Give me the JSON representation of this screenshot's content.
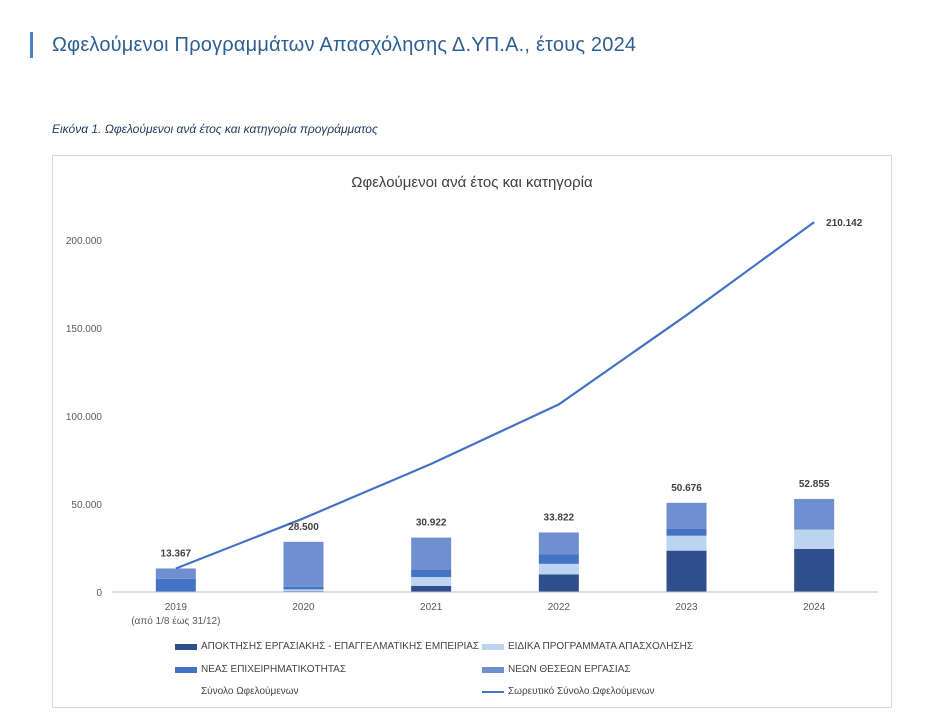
{
  "page": {
    "title": "Ωφελούμενοι Προγραμμάτων Απασχόλησης Δ.ΥΠ.Α., έτους 2024",
    "caption": "Εικόνα 1. Ωφελούμενοι ανά έτος και κατηγορία προγράμματος"
  },
  "colors": {
    "accent": "#4a84c4",
    "s1": "#2f4e8c",
    "s2": "#bcd4ef",
    "s3": "#4472c4",
    "s4": "#6f8fd0",
    "line": "#4472c4"
  },
  "chart_data": {
    "type": "bar",
    "stacked": true,
    "title": "Ωφελούμενοι ανά έτος και κατηγορία",
    "categories": [
      "2019",
      "2020",
      "2021",
      "2022",
      "2023",
      "2024"
    ],
    "category_sublabels": [
      "(από 1/8 έως 31/12)",
      "",
      "",
      "",
      "",
      ""
    ],
    "ylim": [
      0,
      200000
    ],
    "yticks": [
      0,
      50000,
      100000,
      150000,
      200000
    ],
    "ytick_labels": [
      "0",
      "50.000",
      "100.000",
      "150.000",
      "200.000"
    ],
    "series": [
      {
        "name": "ΑΠΟΚΤΗΣΗΣ ΕΡΓΑΣΙΑΚΗΣ - ΕΠΑΓΓΕΛΜΑΤΙΚΗΣ ΕΜΠΕΙΡΙΑΣ",
        "color": "#2f4e8c",
        "values": [
          0,
          500,
          3500,
          10000,
          23500,
          24500
        ]
      },
      {
        "name": "ΕΙΔΙΚΑ ΠΡΟΓΡΑΜΜΑΤΑ ΑΠΑΣΧΟΛΗΣΗΣ",
        "color": "#bcd4ef",
        "values": [
          0,
          1000,
          5000,
          6000,
          8500,
          11000
        ]
      },
      {
        "name": "ΝΕΑΣ ΕΠΙΧΕΙΡΗΜΑΤΙΚΟΤΗΤΑΣ",
        "color": "#4472c4",
        "values": [
          7500,
          1500,
          4000,
          5500,
          4000,
          0
        ]
      },
      {
        "name": "ΝΕΩΝ ΘΕΣΕΩΝ ΕΡΓΑΣΙΑΣ",
        "color": "#6f8fd0",
        "values": [
          5867,
          25500,
          18422,
          12322,
          14676,
          17355
        ]
      }
    ],
    "totals": {
      "name": "Σύνολο Ωφελούμενων",
      "values": [
        13367,
        28500,
        30922,
        33822,
        50676,
        52855
      ],
      "labels": [
        "13.367",
        "28.500",
        "30.922",
        "33.822",
        "50.676",
        "52.855"
      ]
    },
    "cumulative": {
      "name": "Σωρευτικό Σύνολο Ωφελούμενων",
      "color": "#4472c4",
      "values": [
        13367,
        41867,
        72789,
        106611,
        157287,
        210142
      ],
      "end_label": "210.142"
    },
    "legend_position": "bottom"
  }
}
